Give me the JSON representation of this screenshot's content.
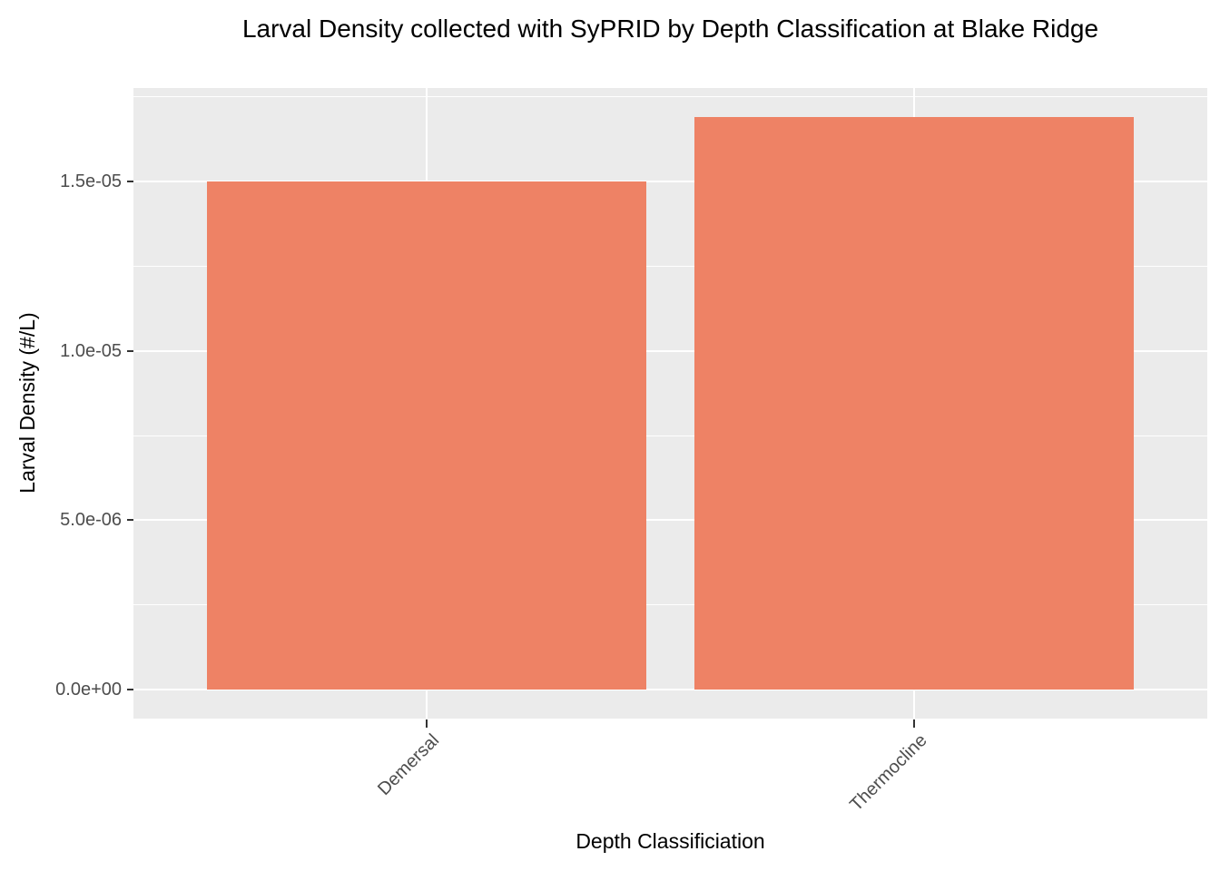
{
  "chart_data": {
    "type": "bar",
    "title": "Larval Density collected with SyPRID by Depth Classification at Blake Ridge",
    "xlabel": "Depth Classificiation",
    "ylabel": "Larval Density (#/L)",
    "categories": [
      "Demersal",
      "Thermocline"
    ],
    "values": [
      1.5e-05,
      1.69e-05
    ],
    "bar_width_fraction": 0.9,
    "ylim": [
      -8.45e-07,
      1.7745e-05
    ],
    "yticks": {
      "values": [
        0,
        5e-06,
        1e-05,
        1.5e-05
      ],
      "labels": [
        "0.0e+00",
        "5.0e-06",
        "1.0e-05",
        "1.5e-05"
      ]
    },
    "minor_gridlines": [
      2.5e-06,
      7.5e-06,
      1.25e-05,
      1.75e-05
    ],
    "grid": true,
    "legend": "none",
    "x_tick_angle_deg": 45
  },
  "colors": {
    "bar_fill": "#EE8265",
    "panel_background": "#EBEBEB",
    "gridline": "#FFFFFF",
    "tick_label": "#4D4D4D",
    "tick_mark": "#333333",
    "axis_title": "#000000",
    "page_background": "#FFFFFF"
  }
}
